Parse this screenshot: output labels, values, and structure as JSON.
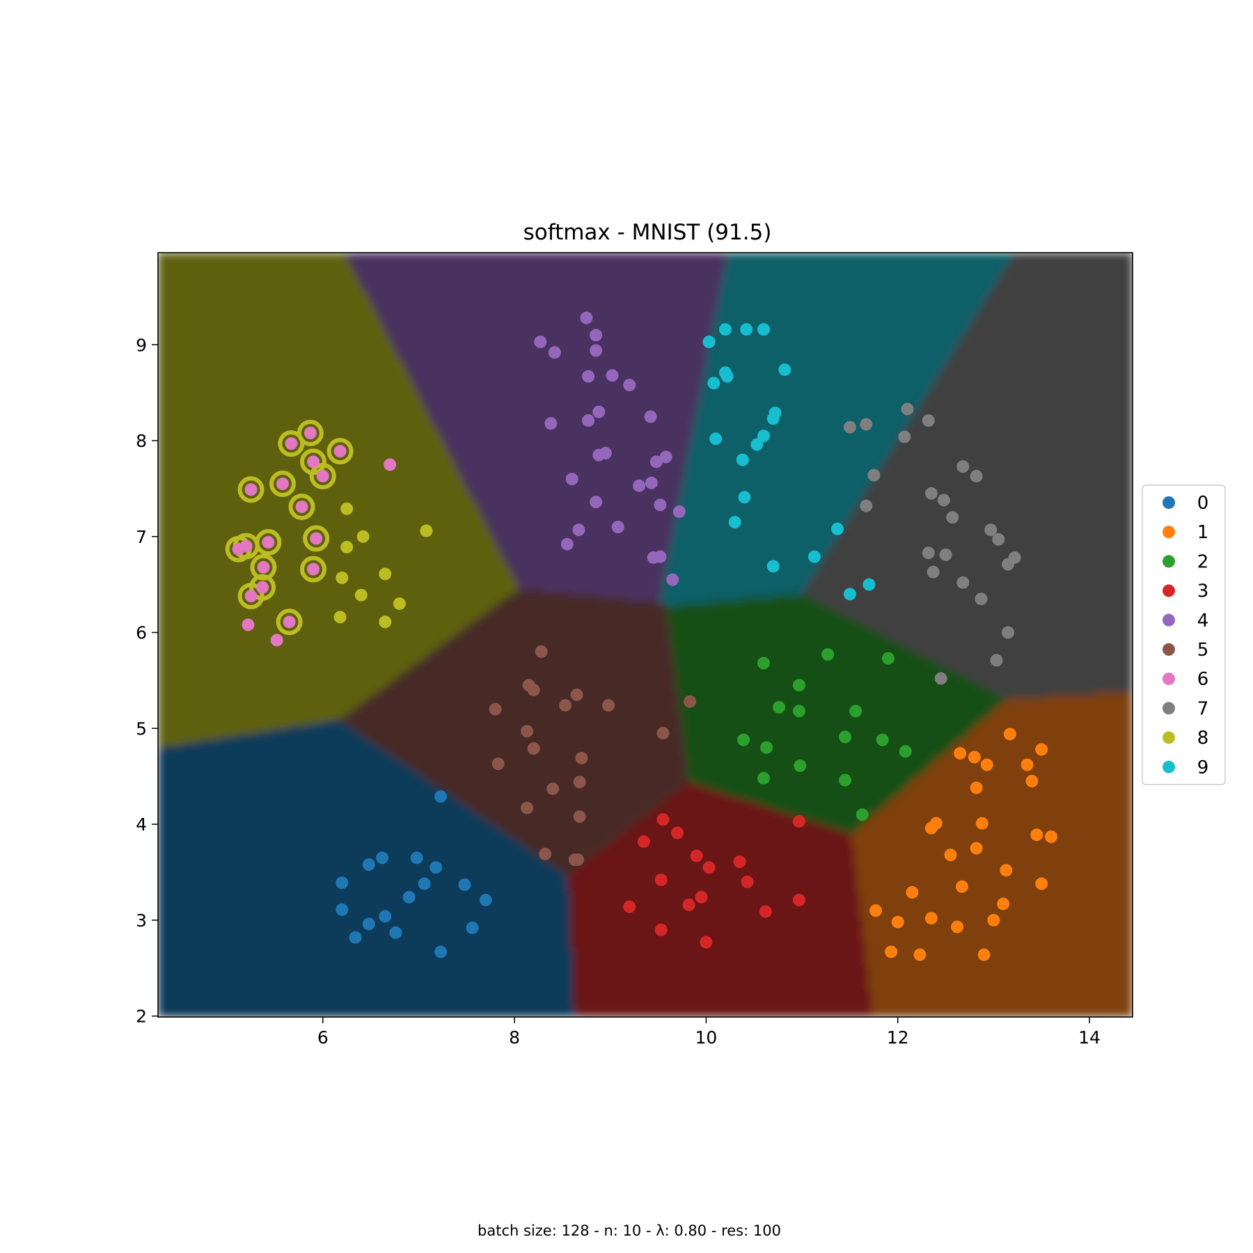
{
  "chart_data": {
    "type": "scatter",
    "title": "softmax - MNIST (91.5)",
    "footer": "batch size: 128 - n: 10 - λ: 0.80 - res: 100",
    "xlabel": "",
    "ylabel": "",
    "xlim": [
      4.28,
      14.45
    ],
    "ylim": [
      1.99,
      9.96
    ],
    "xticks": [
      "6",
      "8",
      "10",
      "12",
      "14"
    ],
    "yticks": [
      "2",
      "3",
      "4",
      "5",
      "6",
      "7",
      "8",
      "9"
    ],
    "grid": false,
    "legend_position": "right-outside",
    "series": [
      {
        "name": "0",
        "color": "#1f77b4",
        "region_color": "#0f3a5a",
        "center": [
          6.9,
          3.3
        ],
        "points": [
          [
            6.2,
            3.39
          ],
          [
            6.2,
            3.11
          ],
          [
            6.48,
            3.58
          ],
          [
            6.62,
            3.65
          ],
          [
            6.98,
            3.65
          ],
          [
            7.18,
            3.55
          ],
          [
            7.06,
            3.38
          ],
          [
            6.9,
            3.24
          ],
          [
            7.48,
            3.37
          ],
          [
            7.7,
            3.21
          ],
          [
            7.23,
            4.29
          ],
          [
            6.65,
            3.04
          ],
          [
            6.48,
            2.96
          ],
          [
            6.34,
            2.82
          ],
          [
            6.76,
            2.87
          ],
          [
            7.56,
            2.92
          ],
          [
            7.23,
            2.67
          ]
        ]
      },
      {
        "name": "1",
        "color": "#ff7f0e",
        "region_color": "#7f3f07",
        "center": [
          12.9,
          3.6
        ],
        "points": [
          [
            13.17,
            4.94
          ],
          [
            13.5,
            4.78
          ],
          [
            12.65,
            4.74
          ],
          [
            12.8,
            4.7
          ],
          [
            12.93,
            4.62
          ],
          [
            13.35,
            4.62
          ],
          [
            13.4,
            4.45
          ],
          [
            12.82,
            4.38
          ],
          [
            12.35,
            3.96
          ],
          [
            12.4,
            4.01
          ],
          [
            12.88,
            4.01
          ],
          [
            13.45,
            3.89
          ],
          [
            13.6,
            3.87
          ],
          [
            12.82,
            3.75
          ],
          [
            12.55,
            3.68
          ],
          [
            13.13,
            3.52
          ],
          [
            12.67,
            3.35
          ],
          [
            13.5,
            3.38
          ],
          [
            12.15,
            3.29
          ],
          [
            11.77,
            3.1
          ],
          [
            12.35,
            3.02
          ],
          [
            12.0,
            2.98
          ],
          [
            13.1,
            3.17
          ],
          [
            13.0,
            3.0
          ],
          [
            12.62,
            2.93
          ],
          [
            11.93,
            2.67
          ],
          [
            12.23,
            2.64
          ],
          [
            12.9,
            2.64
          ]
        ]
      },
      {
        "name": "2",
        "color": "#2ca02c",
        "region_color": "#165016",
        "center": [
          11.0,
          5.0
        ],
        "points": [
          [
            10.6,
            5.68
          ],
          [
            11.27,
            5.77
          ],
          [
            11.9,
            5.73
          ],
          [
            10.97,
            5.45
          ],
          [
            10.76,
            5.22
          ],
          [
            10.97,
            5.18
          ],
          [
            11.56,
            5.18
          ],
          [
            10.39,
            4.88
          ],
          [
            10.63,
            4.8
          ],
          [
            11.45,
            4.91
          ],
          [
            11.84,
            4.88
          ],
          [
            12.08,
            4.76
          ],
          [
            10.98,
            4.61
          ],
          [
            10.6,
            4.48
          ],
          [
            11.45,
            4.46
          ],
          [
            11.63,
            4.1
          ]
        ]
      },
      {
        "name": "3",
        "color": "#d62728",
        "region_color": "#6b1314",
        "center": [
          10.2,
          3.4
        ],
        "points": [
          [
            9.55,
            4.05
          ],
          [
            9.35,
            3.82
          ],
          [
            9.7,
            3.91
          ],
          [
            10.97,
            4.03
          ],
          [
            9.9,
            3.67
          ],
          [
            10.03,
            3.55
          ],
          [
            10.35,
            3.61
          ],
          [
            9.53,
            3.42
          ],
          [
            10.43,
            3.4
          ],
          [
            9.95,
            3.24
          ],
          [
            9.82,
            3.16
          ],
          [
            9.2,
            3.14
          ],
          [
            10.62,
            3.09
          ],
          [
            10.97,
            3.21
          ],
          [
            9.53,
            2.9
          ],
          [
            10.0,
            2.77
          ]
        ]
      },
      {
        "name": "4",
        "color": "#9467bd",
        "region_color": "#4a335e",
        "center": [
          9.0,
          8.0
        ],
        "points": [
          [
            8.75,
            9.28
          ],
          [
            8.85,
            9.1
          ],
          [
            8.27,
            9.03
          ],
          [
            8.42,
            8.92
          ],
          [
            8.85,
            8.94
          ],
          [
            8.77,
            8.67
          ],
          [
            9.02,
            8.68
          ],
          [
            9.2,
            8.58
          ],
          [
            8.88,
            8.3
          ],
          [
            8.38,
            8.18
          ],
          [
            8.77,
            8.21
          ],
          [
            9.42,
            8.25
          ],
          [
            8.88,
            7.85
          ],
          [
            8.95,
            7.87
          ],
          [
            9.48,
            7.78
          ],
          [
            9.58,
            7.83
          ],
          [
            8.6,
            7.6
          ],
          [
            9.3,
            7.53
          ],
          [
            9.43,
            7.56
          ],
          [
            8.85,
            7.36
          ],
          [
            9.52,
            7.33
          ],
          [
            9.72,
            7.26
          ],
          [
            8.67,
            7.07
          ],
          [
            9.08,
            7.1
          ],
          [
            8.55,
            6.92
          ],
          [
            9.45,
            6.78
          ],
          [
            9.52,
            6.79
          ],
          [
            9.65,
            6.55
          ]
        ]
      },
      {
        "name": "5",
        "color": "#8c564b",
        "region_color": "#462b25",
        "center": [
          8.5,
          4.8
        ],
        "points": [
          [
            8.28,
            5.8
          ],
          [
            8.15,
            5.45
          ],
          [
            8.2,
            5.4
          ],
          [
            8.65,
            5.35
          ],
          [
            8.53,
            5.24
          ],
          [
            8.98,
            5.24
          ],
          [
            7.8,
            5.2
          ],
          [
            9.83,
            5.28
          ],
          [
            8.13,
            4.97
          ],
          [
            9.55,
            4.95
          ],
          [
            8.2,
            4.79
          ],
          [
            8.7,
            4.69
          ],
          [
            7.83,
            4.63
          ],
          [
            8.68,
            4.44
          ],
          [
            8.4,
            4.37
          ],
          [
            8.13,
            4.17
          ],
          [
            8.68,
            4.08
          ],
          [
            8.32,
            3.69
          ],
          [
            8.63,
            3.63
          ],
          [
            8.66,
            3.63
          ]
        ]
      },
      {
        "name": "6",
        "color": "#e377c2",
        "region_color": "#c08aa5",
        "center": [
          5.6,
          7.0
        ],
        "points": [
          [
            5.87,
            8.08
          ],
          [
            5.67,
            7.97
          ],
          [
            6.18,
            7.89
          ],
          [
            5.9,
            7.78
          ],
          [
            6.0,
            7.63
          ],
          [
            6.7,
            7.75
          ],
          [
            5.25,
            7.49
          ],
          [
            5.58,
            7.55
          ],
          [
            5.78,
            7.31
          ],
          [
            5.43,
            6.94
          ],
          [
            5.93,
            6.98
          ],
          [
            5.12,
            6.87
          ],
          [
            5.2,
            6.9
          ],
          [
            5.38,
            6.68
          ],
          [
            5.9,
            6.66
          ],
          [
            5.37,
            6.47
          ],
          [
            5.25,
            6.38
          ],
          [
            5.22,
            6.08
          ],
          [
            5.65,
            6.11
          ],
          [
            5.52,
            5.92
          ]
        ]
      },
      {
        "name": "7",
        "color": "#7f7f7f",
        "region_color": "#404040",
        "center": [
          12.6,
          7.0
        ],
        "points": [
          [
            12.1,
            8.33
          ],
          [
            12.32,
            8.21
          ],
          [
            11.5,
            8.14
          ],
          [
            11.67,
            8.17
          ],
          [
            12.07,
            8.04
          ],
          [
            12.68,
            7.73
          ],
          [
            12.82,
            7.63
          ],
          [
            11.75,
            7.64
          ],
          [
            12.35,
            7.45
          ],
          [
            12.48,
            7.38
          ],
          [
            11.67,
            7.32
          ],
          [
            12.57,
            7.2
          ],
          [
            12.97,
            7.07
          ],
          [
            13.05,
            6.97
          ],
          [
            13.22,
            6.78
          ],
          [
            13.15,
            6.71
          ],
          [
            12.32,
            6.83
          ],
          [
            12.5,
            6.81
          ],
          [
            12.37,
            6.63
          ],
          [
            12.68,
            6.52
          ],
          [
            12.87,
            6.35
          ],
          [
            13.15,
            6.0
          ],
          [
            13.03,
            5.71
          ],
          [
            12.45,
            5.52
          ]
        ]
      },
      {
        "name": "8",
        "color": "#bcbd22",
        "region_color": "#5f6011",
        "center": [
          6.0,
          7.0
        ],
        "points": [
          [
            6.25,
            7.29
          ],
          [
            6.42,
            7.0
          ],
          [
            7.08,
            7.06
          ],
          [
            6.25,
            6.89
          ],
          [
            6.2,
            6.57
          ],
          [
            6.65,
            6.61
          ],
          [
            6.4,
            6.39
          ],
          [
            6.8,
            6.3
          ],
          [
            6.18,
            6.16
          ],
          [
            6.65,
            6.11
          ]
        ]
      },
      {
        "name": "9",
        "color": "#17becf",
        "region_color": "#0b5f68",
        "center": [
          10.6,
          7.8
        ],
        "points": [
          [
            10.2,
            9.16
          ],
          [
            10.42,
            9.16
          ],
          [
            10.6,
            9.16
          ],
          [
            10.03,
            9.03
          ],
          [
            10.2,
            8.71
          ],
          [
            10.22,
            8.67
          ],
          [
            10.08,
            8.6
          ],
          [
            10.82,
            8.74
          ],
          [
            10.72,
            8.29
          ],
          [
            10.7,
            8.23
          ],
          [
            10.1,
            8.02
          ],
          [
            10.6,
            8.05
          ],
          [
            10.53,
            7.96
          ],
          [
            10.38,
            7.8
          ],
          [
            10.4,
            7.41
          ],
          [
            10.3,
            7.15
          ],
          [
            11.37,
            7.08
          ],
          [
            10.7,
            6.69
          ],
          [
            11.13,
            6.79
          ],
          [
            11.7,
            6.5
          ],
          [
            11.5,
            6.4
          ]
        ]
      }
    ],
    "highlighted_points_class": "8",
    "highlighted_points": [
      [
        5.87,
        8.08
      ],
      [
        5.67,
        7.97
      ],
      [
        6.18,
        7.89
      ],
      [
        5.9,
        7.78
      ],
      [
        6.0,
        7.63
      ],
      [
        5.25,
        7.49
      ],
      [
        5.58,
        7.55
      ],
      [
        5.78,
        7.31
      ],
      [
        5.43,
        6.94
      ],
      [
        5.93,
        6.98
      ],
      [
        5.12,
        6.87
      ],
      [
        5.2,
        6.9
      ],
      [
        5.38,
        6.68
      ],
      [
        5.9,
        6.66
      ],
      [
        5.37,
        6.47
      ],
      [
        5.25,
        6.38
      ],
      [
        5.65,
        6.11
      ]
    ]
  }
}
